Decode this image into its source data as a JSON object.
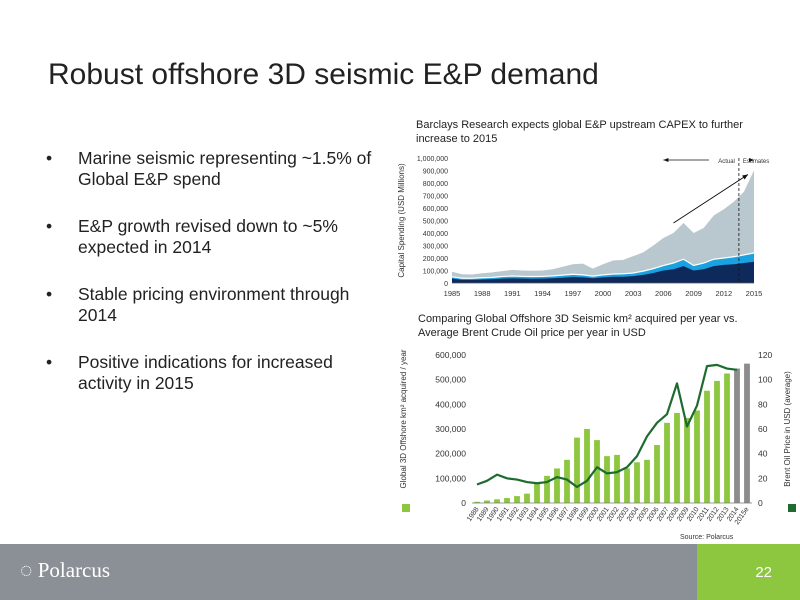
{
  "slide": {
    "title": "Robust offshore 3D seismic E&P demand",
    "bullets": [
      "Marine seismic representing ~1.5% of Global E&P spend",
      "E&P growth revised down to ~5% expected in 2014",
      "Stable pricing environment through 2014",
      "Positive indications for increased activity in 2015"
    ],
    "bullet_glyph": "•",
    "source": "Source: Polarcus",
    "page_number": "22",
    "logo_text": "Polarcus"
  },
  "chart_data": [
    {
      "type": "area",
      "caption": "Barclays Research expects global E&P upstream CAPEX to further increase to 2015",
      "ylabel": "Capital Spending (USD Millions)",
      "ylim": [
        0,
        1000000
      ],
      "yticks": [
        "0",
        "100,000",
        "200,000",
        "300,000",
        "400,000",
        "500,000",
        "600,000",
        "700,000",
        "800,000",
        "900,000",
        "1,000,000"
      ],
      "xticks": [
        "1985",
        "1988",
        "1991",
        "1994",
        "1997",
        "2000",
        "2003",
        "2006",
        "2009",
        "2012",
        "2015"
      ],
      "annotations": {
        "actual": "Actual",
        "estimates": "Estimates",
        "divider_year": 2013.5
      },
      "trend_arrow": {
        "from": [
          2007,
          480000
        ],
        "to": [
          2015,
          900000
        ]
      },
      "colors": {
        "top": "#b9c7ce",
        "mid": "#1aa1e0",
        "base": "#0e2a5c",
        "white_line": "#ffffff"
      },
      "x": [
        1985,
        1986,
        1987,
        1988,
        1989,
        1990,
        1991,
        1992,
        1993,
        1994,
        1995,
        1996,
        1997,
        1998,
        1999,
        2000,
        2001,
        2002,
        2003,
        2004,
        2005,
        2006,
        2007,
        2008,
        2009,
        2010,
        2011,
        2012,
        2013,
        2014,
        2015
      ],
      "series": [
        {
          "values": [
            35000,
            25000,
            25000,
            28000,
            30000,
            35000,
            37000,
            35000,
            34000,
            35000,
            38000,
            42000,
            48000,
            45000,
            38000,
            45000,
            50000,
            50000,
            55000,
            65000,
            80000,
            100000,
            110000,
            135000,
            100000,
            110000,
            135000,
            145000,
            150000,
            160000,
            170000
          ]
        },
        {
          "values": [
            50000,
            38000,
            38000,
            42000,
            45000,
            52000,
            56000,
            53000,
            52000,
            53000,
            57000,
            63000,
            70000,
            65000,
            55000,
            65000,
            72000,
            74000,
            80000,
            95000,
            115000,
            140000,
            160000,
            190000,
            140000,
            160000,
            190000,
            200000,
            210000,
            225000,
            240000
          ]
        },
        {
          "values": [
            90000,
            70000,
            68000,
            78000,
            85000,
            95000,
            105000,
            100000,
            98000,
            100000,
            110000,
            130000,
            150000,
            155000,
            115000,
            150000,
            180000,
            185000,
            215000,
            245000,
            300000,
            360000,
            400000,
            480000,
            400000,
            440000,
            540000,
            590000,
            650000,
            730000,
            900000
          ]
        }
      ]
    },
    {
      "type": "bar",
      "caption": "Comparing Global Offshore 3D Seismic km² acquired per year vs. Average Brent Crude Oil price per year in USD",
      "ylabel": "Global 3D Offshore km² acquired / year",
      "y2label": "Brent Oil Price in USD (average)",
      "ylim": [
        0,
        600000
      ],
      "y2lim": [
        0,
        120
      ],
      "yticks": [
        "0",
        "100,000",
        "200,000",
        "300,000",
        "400,000",
        "500,000",
        "600,000"
      ],
      "y2ticks": [
        "0",
        "20",
        "40",
        "60",
        "80",
        "100",
        "120"
      ],
      "categories": [
        "1988",
        "1989",
        "1990",
        "1991",
        "1992",
        "1993",
        "1994",
        "1995",
        "1996",
        "1997",
        "1998",
        "1999",
        "2000",
        "2001",
        "2002",
        "2003",
        "2004",
        "2005",
        "2006",
        "2007",
        "2008",
        "2009",
        "2010",
        "2011",
        "2012",
        "2013",
        "2014",
        "2015e"
      ],
      "colors": {
        "bars": "#8dc63f",
        "estimate_bars": "#8c8c8c",
        "line": "#1e6b2f"
      },
      "series": [
        {
          "values": [
            5000,
            10000,
            15000,
            20000,
            28000,
            38000,
            80000,
            110000,
            140000,
            175000,
            265000,
            300000,
            255000,
            190000,
            195000,
            140000,
            165000,
            175000,
            235000,
            325000,
            365000,
            345000,
            375000,
            455000,
            495000,
            525000,
            545000,
            565000
          ]
        },
        {
          "axis": "right",
          "values": [
            15,
            18,
            23,
            20,
            19,
            17,
            16,
            17,
            21,
            19,
            13,
            18,
            29,
            24,
            25,
            29,
            38,
            54,
            65,
            72,
            97,
            62,
            79,
            111,
            112,
            109,
            108,
            null
          ]
        }
      ],
      "estimate_from_index": 26
    }
  ]
}
